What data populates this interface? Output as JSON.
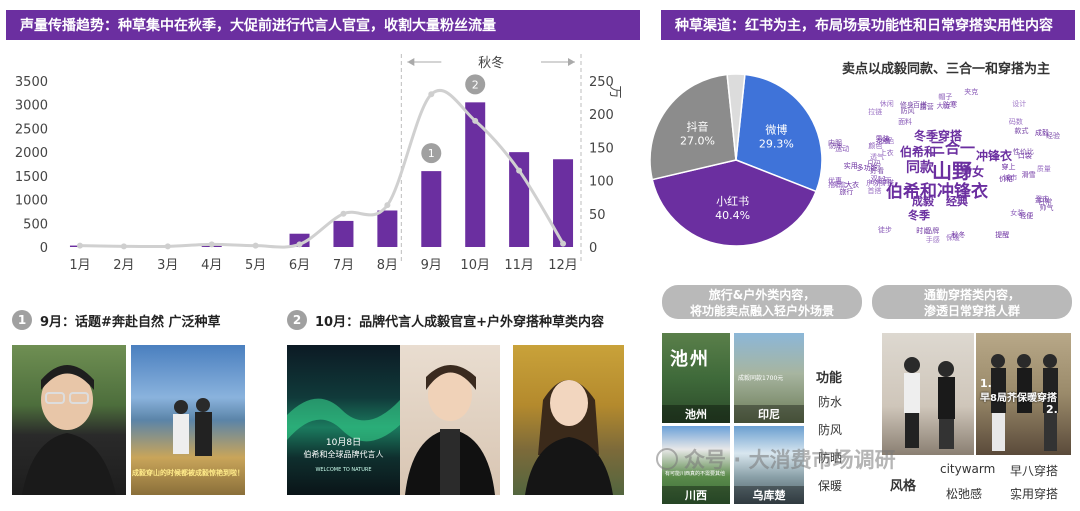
{
  "left_banner": "声量传播趋势：种草集中在秋季，大促前进行代言人官宣，收割大量粉丝流量",
  "right_banner": "种草渠道：红书为主，布局场景功能性和日常穿搭实用性内容",
  "season_label": "秋冬",
  "unit_label": "万",
  "chart_data": {
    "type": "bar+line",
    "categories": [
      "1月",
      "2月",
      "3月",
      "4月",
      "5月",
      "6月",
      "7月",
      "8月",
      "9月",
      "10月",
      "11月",
      "12月"
    ],
    "series": [
      {
        "values": [
          30,
          10,
          15,
          30,
          20,
          280,
          550,
          770,
          1600,
          3050,
          2000,
          1850
        ]
      },
      {
        "values": [
          2,
          1,
          1,
          4,
          2,
          4,
          50,
          63,
          230,
          190,
          115,
          5
        ]
      }
    ],
    "y_left_ticks": [
      "0",
      "500",
      "1000",
      "1500",
      "2000",
      "2500",
      "3000",
      "3500"
    ],
    "y_right_ticks": [
      "0",
      "50",
      "100",
      "150",
      "200",
      "250"
    ],
    "ylim_left": [
      0,
      3500
    ],
    "ylim_right": [
      0,
      250
    ],
    "markers": [
      "1",
      "2"
    ],
    "colors": {
      "bar": "#6b2fa0",
      "line": "#d0d0d0"
    }
  },
  "point1": {
    "num": "1",
    "text": "9月：话题#奔赴自然 广泛种草"
  },
  "point2": {
    "num": "2",
    "text": "10月：品牌代言人成毅官宣+户外穿搭种草类内容"
  },
  "photo_captions": {
    "p2_caption": "成毅穿山的时候都被成毅惊艳到啦！",
    "p3_line1": "10月8日",
    "p3_line2": "伯希和全球品牌代言人",
    "p3_line3": "WELCOME TO NATURE"
  },
  "pie": {
    "title": "卖点以成毅同款、三合一和穿搭为主",
    "slices": [
      {
        "name": "微博",
        "pct": "29.3%",
        "value": 29.3,
        "color": "#3f73d9"
      },
      {
        "name": "小红书",
        "pct": "40.4%",
        "value": 40.4,
        "color": "#6b2fa0"
      },
      {
        "name": "抖音",
        "pct": "27.0%",
        "value": 27.0,
        "color": "#8c8c8c"
      },
      {
        "name": "",
        "pct": "",
        "value": 3.3,
        "color": "#dcdcdc"
      }
    ]
  },
  "wordcloud": {
    "big": [
      "伯希和冲锋衣",
      "山野",
      "三合一",
      "同款",
      "冬季穿搭",
      "伯希和",
      "冲锋衣",
      "男女",
      "成毅",
      "冬季",
      "经典"
    ],
    "small": [
      "多功能",
      "户外穿搭",
      "金币",
      "山色",
      "时尚",
      "颜色",
      "经验",
      "首搭",
      "提醒",
      "上衣",
      "日常",
      "保暖",
      "防寒",
      "城市",
      "防风",
      "户外",
      "旅行",
      "双11",
      "品牌",
      "设计",
      "成毅",
      "大促",
      "修身",
      "手感",
      "穿上",
      "必备",
      "帅气",
      "外套",
      "男装",
      "女装",
      "百搭",
      "休闲",
      "秋冬",
      "运动",
      "好看",
      "质量",
      "大衣",
      "徒步",
      "露营",
      "登山",
      "滑雪",
      "防雨",
      "防水",
      "透气",
      "轻便",
      "面料",
      "款式",
      "推荐",
      "实用",
      "夹克",
      "内胆",
      "拉链",
      "口袋",
      "帽子",
      "尺码",
      "码数",
      "价格",
      "优惠",
      "性价比"
    ]
  },
  "pills": {
    "left": [
      "旅行&户外类内容，",
      "将功能卖点融入轻户外场景"
    ],
    "right": [
      "通勤穿搭类内容，",
      "渗透日常穿搭人群"
    ]
  },
  "tiles": {
    "t1_title": "池州",
    "t1": "池州",
    "t2": "印尼",
    "t3": "川西",
    "t4": "乌库楚",
    "t2_caption": "成毅同款1700元",
    "t3_caption": "有可能川西真的不需要其他"
  },
  "function_label": "功能",
  "function_items": [
    "防水",
    "防风",
    "防晒",
    "保暖"
  ],
  "style_label": "风格",
  "style_items": [
    "citywarm",
    "早八穿搭",
    "松弛感",
    "实用穿搭"
  ],
  "commute_overlay": [
    "1.",
    "早8局芥保暖穿搭",
    "2."
  ],
  "watermark": "众号 · 大消费市场调研",
  "quote_mark": "“"
}
